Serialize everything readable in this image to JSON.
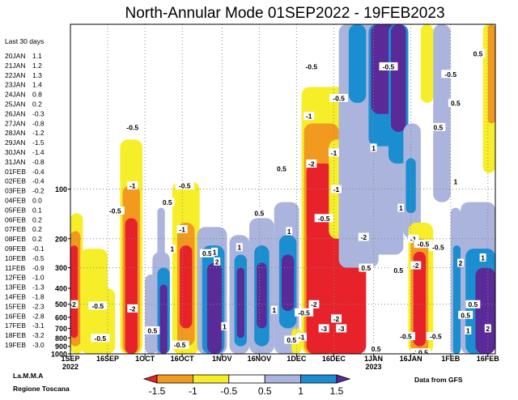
{
  "chart_data": {
    "type": "heatmap",
    "title": "North-Annular Mode 01SEP2022 - 19FEB2023",
    "side_panel": {
      "heading": "Last 30 days",
      "entries": [
        {
          "date": "20JAN",
          "value": "1.1",
          "color": "#000000"
        },
        {
          "date": "21JAN",
          "value": "1.2",
          "color": "#000000"
        },
        {
          "date": "22JAN",
          "value": "1.3",
          "color": "#000000"
        },
        {
          "date": "23JAN",
          "value": "1.4",
          "color": "#000000"
        },
        {
          "date": "24JAN",
          "value": "0.8",
          "color": "#000000"
        },
        {
          "date": "25JAN",
          "value": "0.2",
          "color": "#000000"
        },
        {
          "date": "26JAN",
          "value": "-0.3",
          "color": "#000000"
        },
        {
          "date": "27JAN",
          "value": "-0.8",
          "color": "#000000"
        },
        {
          "date": "28JAN",
          "value": "-1.2",
          "color": "#000000"
        },
        {
          "date": "29JAN",
          "value": "-1.5",
          "color": "#000000"
        },
        {
          "date": "30JAN",
          "value": "-1.4",
          "color": "#000000"
        },
        {
          "date": "31JAN",
          "value": "-0.8",
          "color": "#000000"
        },
        {
          "date": "01FEB",
          "value": "-0.4",
          "color": "#000000"
        },
        {
          "date": "02FEB",
          "value": "-0.4",
          "color": "#000000"
        },
        {
          "date": "03FEB",
          "value": "-0.2",
          "color": "#000000"
        },
        {
          "date": "04FEB",
          "value": "0.0",
          "color": "#000000"
        },
        {
          "date": "05FEB",
          "value": "0.1",
          "color": "#000000"
        },
        {
          "date": "06FEB",
          "value": "0.2",
          "color": "#000000"
        },
        {
          "date": "07FEB",
          "value": "0.2",
          "color": "#000000"
        },
        {
          "date": "08FEB",
          "value": "0.2",
          "color": "#000000"
        },
        {
          "date": "09FEB",
          "value": "-0.1",
          "color": "#000000"
        },
        {
          "date": "10FEB",
          "value": "-0.5",
          "color": "#000000"
        },
        {
          "date": "11FEB",
          "value": "-0.9",
          "color": "#000000"
        },
        {
          "date": "12FEB",
          "value": "-1.0",
          "color": "#000000"
        },
        {
          "date": "13FEB",
          "value": "-1.3",
          "color": "#000000"
        },
        {
          "date": "14FEB",
          "value": "-1.8",
          "color": "#000000"
        },
        {
          "date": "15FEB",
          "value": "-2.3",
          "color": "#000000"
        },
        {
          "date": "16FEB",
          "value": "-2.8",
          "color": "#000000"
        },
        {
          "date": "17FEB",
          "value": "-3.1",
          "color": "#e8333a"
        },
        {
          "date": "18FEB",
          "value": "-3.2",
          "color": "#e8333a"
        },
        {
          "date": "19FEB",
          "value": "-3.0",
          "color": "#e8333a"
        }
      ]
    },
    "x_axis": {
      "start": "2022-09-01",
      "end": "2023-02-19",
      "ticks": [
        {
          "date": "2022-09-01",
          "label": "1SEP",
          "sub": "2022"
        },
        {
          "date": "2022-09-16",
          "label": "16SEP",
          "sub": ""
        },
        {
          "date": "2022-10-01",
          "label": "1OCT",
          "sub": ""
        },
        {
          "date": "2022-10-16",
          "label": "16OCT",
          "sub": ""
        },
        {
          "date": "2022-11-01",
          "label": "1NOV",
          "sub": ""
        },
        {
          "date": "2022-11-16",
          "label": "16NOV",
          "sub": ""
        },
        {
          "date": "2022-12-01",
          "label": "1DEC",
          "sub": ""
        },
        {
          "date": "2022-12-16",
          "label": "16DEC",
          "sub": ""
        },
        {
          "date": "2023-01-01",
          "label": "1JAN",
          "sub": "2023"
        },
        {
          "date": "2023-01-16",
          "label": "16JAN",
          "sub": ""
        },
        {
          "date": "2023-02-01",
          "label": "1FEB",
          "sub": ""
        },
        {
          "date": "2023-02-16",
          "label": "16FEB",
          "sub": ""
        }
      ]
    },
    "y_axis": {
      "scale": "log",
      "unit": "hPa",
      "ylim": [
        1000,
        10
      ],
      "ticks": [
        1000,
        900,
        800,
        700,
        600,
        500,
        400,
        300,
        200,
        100
      ],
      "grid_levels": [
        100,
        200,
        300,
        500
      ]
    },
    "colorbar": {
      "bounds": [
        -2.5,
        -1.5,
        -1,
        -0.5,
        0.5,
        1,
        1.5,
        2.5
      ],
      "tick_labels": [
        "-1.5",
        "-1",
        "-0.5",
        "0.5",
        "1",
        "1.5"
      ],
      "colors": [
        "#e8222a",
        "#f29a1f",
        "#f7ee2a",
        "#ffffff",
        "#aab4dc",
        "#1a8ed0",
        "#5a2a98"
      ]
    },
    "patches": [
      {
        "t0": "2022-09-01",
        "t1": "2022-09-06",
        "p_top": 140,
        "p_bot": 1000,
        "v": -0.7
      },
      {
        "t0": "2022-09-01",
        "t1": "2022-09-05",
        "p_top": 180,
        "p_bot": 900,
        "v": -1.2
      },
      {
        "t0": "2022-09-01",
        "t1": "2022-09-04",
        "p_top": 220,
        "p_bot": 800,
        "v": -1.8
      },
      {
        "t0": "2022-09-05",
        "t1": "2022-09-16",
        "p_top": 230,
        "p_bot": 1000,
        "v": -0.6
      },
      {
        "t0": "2022-09-13",
        "t1": "2022-09-19",
        "p_top": 400,
        "p_bot": 1000,
        "v": -0.6
      },
      {
        "t0": "2022-09-21",
        "t1": "2022-09-30",
        "p_top": 50,
        "p_bot": 1000,
        "v": -0.7
      },
      {
        "t0": "2022-09-22",
        "t1": "2022-09-29",
        "p_top": 95,
        "p_bot": 1000,
        "v": -1.2
      },
      {
        "t0": "2022-09-23",
        "t1": "2022-09-28",
        "p_top": 150,
        "p_bot": 1000,
        "v": -2.0
      },
      {
        "t0": "2022-10-01",
        "t1": "2022-10-06",
        "p_top": 330,
        "p_bot": 1000,
        "v": 0.7
      },
      {
        "t0": "2022-10-04",
        "t1": "2022-10-11",
        "p_top": 240,
        "p_bot": 1000,
        "v": 0.7
      },
      {
        "t0": "2022-10-06",
        "t1": "2022-10-11",
        "p_top": 300,
        "p_bot": 1000,
        "v": 1.2
      },
      {
        "t0": "2022-10-07",
        "t1": "2022-10-10",
        "p_top": 380,
        "p_bot": 1000,
        "v": 1.8
      },
      {
        "t0": "2022-10-06",
        "t1": "2022-10-09",
        "p_top": 130,
        "p_bot": 300,
        "v": 0.7
      },
      {
        "t0": "2022-10-12",
        "t1": "2022-10-23",
        "p_top": 90,
        "p_bot": 1000,
        "v": -0.7
      },
      {
        "t0": "2022-10-14",
        "t1": "2022-10-21",
        "p_top": 160,
        "p_bot": 900,
        "v": -1.2
      },
      {
        "t0": "2022-10-15",
        "t1": "2022-10-20",
        "p_top": 220,
        "p_bot": 700,
        "v": -2.0
      },
      {
        "t0": "2022-10-22",
        "t1": "2022-11-03",
        "p_top": 170,
        "p_bot": 1000,
        "v": 0.7
      },
      {
        "t0": "2022-10-24",
        "t1": "2022-11-02",
        "p_top": 220,
        "p_bot": 1000,
        "v": 1.2
      },
      {
        "t0": "2022-10-26",
        "t1": "2022-11-01",
        "p_top": 280,
        "p_bot": 1000,
        "v": 1.8
      },
      {
        "t0": "2022-11-04",
        "t1": "2022-11-12",
        "p_top": 190,
        "p_bot": 1000,
        "v": 0.7
      },
      {
        "t0": "2022-11-06",
        "t1": "2022-11-11",
        "p_top": 250,
        "p_bot": 900,
        "v": 1.2
      },
      {
        "t0": "2022-11-07",
        "t1": "2022-11-10",
        "p_top": 300,
        "p_bot": 800,
        "v": 1.8
      },
      {
        "t0": "2022-11-12",
        "t1": "2022-11-22",
        "p_top": 150,
        "p_bot": 1000,
        "v": 0.7
      },
      {
        "t0": "2022-11-14",
        "t1": "2022-11-20",
        "p_top": 220,
        "p_bot": 900,
        "v": 1.2
      },
      {
        "t0": "2022-11-15",
        "t1": "2022-11-19",
        "p_top": 280,
        "p_bot": 700,
        "v": 1.8
      },
      {
        "t0": "2022-11-22",
        "t1": "2022-12-02",
        "p_top": 120,
        "p_bot": 1000,
        "v": 0.7
      },
      {
        "t0": "2022-11-24",
        "t1": "2022-12-01",
        "p_top": 190,
        "p_bot": 700,
        "v": 1.2
      },
      {
        "t0": "2022-11-25",
        "t1": "2022-11-30",
        "p_top": 250,
        "p_bot": 550,
        "v": 1.8
      },
      {
        "t0": "2022-11-29",
        "t1": "2022-12-03",
        "p_top": 700,
        "p_bot": 1000,
        "v": -0.7
      },
      {
        "t0": "2022-12-03",
        "t1": "2022-12-21",
        "p_top": 24,
        "p_bot": 1000,
        "v": -0.7
      },
      {
        "t0": "2022-12-04",
        "t1": "2022-12-18",
        "p_top": 40,
        "p_bot": 1000,
        "v": -1.2
      },
      {
        "t0": "2022-12-05",
        "t1": "2022-12-16",
        "p_top": 70,
        "p_bot": 1000,
        "v": -2.0
      },
      {
        "t0": "2022-12-13",
        "t1": "2022-12-29",
        "p_top": 200,
        "p_bot": 1000,
        "v": -2.0
      },
      {
        "t0": "2022-12-14",
        "t1": "2022-12-21",
        "p_top": 50,
        "p_bot": 200,
        "v": -0.7
      },
      {
        "t0": "2022-12-21",
        "t1": "2022-12-28",
        "p_top": 130,
        "p_bot": 200,
        "v": -1.2
      },
      {
        "t0": "2022-12-18",
        "t1": "2022-12-28",
        "p_top": 75,
        "p_bot": 130,
        "v": -0.7
      },
      {
        "t0": "2022-12-18",
        "t1": "2023-01-03",
        "p_top": 10,
        "p_bot": 300,
        "v": 0.7
      },
      {
        "t0": "2022-12-22",
        "t1": "2022-12-29",
        "p_top": 10,
        "p_bot": 30,
        "v": 1.2
      },
      {
        "t0": "2022-12-29",
        "t1": "2023-01-13",
        "p_top": 10,
        "p_bot": 250,
        "v": 0.7
      },
      {
        "t0": "2022-12-30",
        "t1": "2023-01-12",
        "p_top": 10,
        "p_bot": 55,
        "v": 1.2
      },
      {
        "t0": "2022-12-31",
        "t1": "2023-01-10",
        "p_top": 10,
        "p_bot": 35,
        "v": 1.8
      },
      {
        "t0": "2023-01-07",
        "t1": "2023-01-15",
        "p_top": 10,
        "p_bot": 70,
        "v": 1.2
      },
      {
        "t0": "2023-01-08",
        "t1": "2023-01-14",
        "p_top": 10,
        "p_bot": 45,
        "v": 1.8
      },
      {
        "t0": "2023-01-13",
        "t1": "2023-01-20",
        "p_top": 40,
        "p_bot": 200,
        "v": 0.7
      },
      {
        "t0": "2023-01-14",
        "t1": "2023-01-18",
        "p_top": 65,
        "p_bot": 140,
        "v": 1.2
      },
      {
        "t0": "2023-01-15",
        "t1": "2023-01-25",
        "p_top": 160,
        "p_bot": 1000,
        "v": -0.7
      },
      {
        "t0": "2023-01-16",
        "t1": "2023-01-23",
        "p_top": 200,
        "p_bot": 1000,
        "v": -1.2
      },
      {
        "t0": "2023-01-17",
        "t1": "2023-01-22",
        "p_top": 240,
        "p_bot": 900,
        "v": -2.0
      },
      {
        "t0": "2023-01-20",
        "t1": "2023-01-25",
        "p_top": 10,
        "p_bot": 30,
        "v": -0.7
      },
      {
        "t0": "2023-01-25",
        "t1": "2023-02-01",
        "p_top": 10,
        "p_bot": 120,
        "v": 0.7
      },
      {
        "t0": "2023-02-01",
        "t1": "2023-02-05",
        "p_top": 130,
        "p_bot": 1000,
        "v": 0.7
      },
      {
        "t0": "2023-02-02",
        "t1": "2023-02-05",
        "p_top": 220,
        "p_bot": 1000,
        "v": 1.2
      },
      {
        "t0": "2023-02-05",
        "t1": "2023-02-19",
        "p_top": 120,
        "p_bot": 1000,
        "v": 0.7
      },
      {
        "t0": "2023-02-07",
        "t1": "2023-02-19",
        "p_top": 230,
        "p_bot": 1000,
        "v": 1.2
      },
      {
        "t0": "2023-02-11",
        "t1": "2023-02-19",
        "p_top": 300,
        "p_bot": 1000,
        "v": 1.8
      },
      {
        "t0": "2023-02-14",
        "t1": "2023-02-19",
        "p_top": 10,
        "p_bot": 80,
        "v": -0.7
      },
      {
        "t0": "2023-02-16",
        "t1": "2023-02-19",
        "p_top": 10,
        "p_bot": 40,
        "v": -1.2
      }
    ],
    "contour_labels": [
      {
        "t": "2022-09-02",
        "p": 500,
        "text": "-2"
      },
      {
        "t": "2022-09-12",
        "p": 510,
        "text": "-0.5"
      },
      {
        "t": "2022-09-13",
        "p": 800,
        "text": "-0.5"
      },
      {
        "t": "2022-09-19",
        "p": 135,
        "text": "-0.5"
      },
      {
        "t": "2022-09-26",
        "p": 42,
        "text": "-0.5"
      },
      {
        "t": "2022-09-26",
        "p": 95,
        "text": "-1"
      },
      {
        "t": "2022-09-26",
        "p": 530,
        "text": "-2"
      },
      {
        "t": "2022-10-04",
        "p": 720,
        "text": "0.5"
      },
      {
        "t": "2022-10-10",
        "p": 120,
        "text": "0.5"
      },
      {
        "t": "2022-10-12",
        "p": 230,
        "text": "1"
      },
      {
        "t": "2022-10-15",
        "p": 880,
        "text": "-0.5"
      },
      {
        "t": "2022-10-17",
        "p": 95,
        "text": "-0.5"
      },
      {
        "t": "2022-10-16",
        "p": 175,
        "text": "-1"
      },
      {
        "t": "2022-10-26",
        "p": 245,
        "text": "0.5"
      },
      {
        "t": "2022-10-29",
        "p": 240,
        "text": "1"
      },
      {
        "t": "2022-10-30",
        "p": 275,
        "text": "2"
      },
      {
        "t": "2022-11-02",
        "p": 680,
        "text": "1"
      },
      {
        "t": "2022-11-08",
        "p": 225,
        "text": "1"
      },
      {
        "t": "2022-11-16",
        "p": 140,
        "text": "0.5"
      },
      {
        "t": "2022-11-22",
        "p": 540,
        "text": "1"
      },
      {
        "t": "2022-11-25",
        "p": 75,
        "text": "0.5"
      },
      {
        "t": "2022-11-28",
        "p": 180,
        "text": "1"
      },
      {
        "t": "2022-11-29",
        "p": 820,
        "text": "0.5"
      },
      {
        "t": "2022-12-03",
        "p": 790,
        "text": "-1"
      },
      {
        "t": "2022-12-04",
        "p": 560,
        "text": "-0.5"
      },
      {
        "t": "2022-12-07",
        "p": 18,
        "text": "-0.5"
      },
      {
        "t": "2022-12-06",
        "p": 36,
        "text": "-1"
      },
      {
        "t": "2022-12-07",
        "p": 70,
        "text": "-2"
      },
      {
        "t": "2022-12-08",
        "p": 500,
        "text": "-2"
      },
      {
        "t": "2022-12-12",
        "p": 700,
        "text": "-3"
      },
      {
        "t": "2022-12-12",
        "p": 150,
        "text": "-0.5"
      },
      {
        "t": "2022-12-16",
        "p": 60,
        "text": "-1"
      },
      {
        "t": "2022-12-17",
        "p": 100,
        "text": "-1"
      },
      {
        "t": "2022-12-17",
        "p": 610,
        "text": "-2"
      },
      {
        "t": "2022-12-18",
        "p": 28,
        "text": "-0.5"
      },
      {
        "t": "2022-12-19",
        "p": 700,
        "text": "-3"
      },
      {
        "t": "2022-12-28",
        "p": 195,
        "text": "-2"
      },
      {
        "t": "2022-12-29",
        "p": 300,
        "text": "0.5"
      },
      {
        "t": "2023-01-01",
        "p": 56,
        "text": "1"
      },
      {
        "t": "2023-01-02",
        "p": 930,
        "text": "0.5"
      },
      {
        "t": "2023-01-07",
        "p": 18,
        "text": "-0.5"
      },
      {
        "t": "2023-01-11",
        "p": 310,
        "text": "0.5"
      },
      {
        "t": "2023-01-12",
        "p": 130,
        "text": "1"
      },
      {
        "t": "2023-01-14",
        "p": 780,
        "text": "-0.5"
      },
      {
        "t": "2023-01-17",
        "p": 200,
        "text": "-1"
      },
      {
        "t": "2023-01-18",
        "p": 290,
        "text": "-2"
      },
      {
        "t": "2023-01-18",
        "p": 980,
        "text": "-3"
      },
      {
        "t": "2023-01-21",
        "p": 215,
        "text": "-0.5"
      },
      {
        "t": "2023-01-21",
        "p": 980,
        "text": "0.5"
      },
      {
        "t": "2023-01-26",
        "p": 780,
        "text": "-0.5"
      },
      {
        "t": "2023-01-27",
        "p": 42,
        "text": "0.5"
      },
      {
        "t": "2023-01-27",
        "p": 225,
        "text": "-0.5"
      },
      {
        "t": "2023-02-01",
        "p": 20,
        "text": "-0.5"
      },
      {
        "t": "2023-02-03",
        "p": 30,
        "text": "0.5"
      },
      {
        "t": "2023-02-03",
        "p": 90,
        "text": "1"
      },
      {
        "t": "2023-02-05",
        "p": 280,
        "text": "2"
      },
      {
        "t": "2023-02-07",
        "p": 580,
        "text": "0.5"
      },
      {
        "t": "2023-02-08",
        "p": 720,
        "text": "1"
      },
      {
        "t": "2023-02-10",
        "p": 500,
        "text": "0.5"
      },
      {
        "t": "2023-02-12",
        "p": 15,
        "text": "0.5"
      },
      {
        "t": "2023-02-14",
        "p": 260,
        "text": "1"
      },
      {
        "t": "2023-02-16",
        "p": 700,
        "text": "2"
      }
    ]
  },
  "footer": {
    "left_line1": "La.M.M.A",
    "left_line2": "Regione Toscana",
    "right": "Data from GFS"
  }
}
